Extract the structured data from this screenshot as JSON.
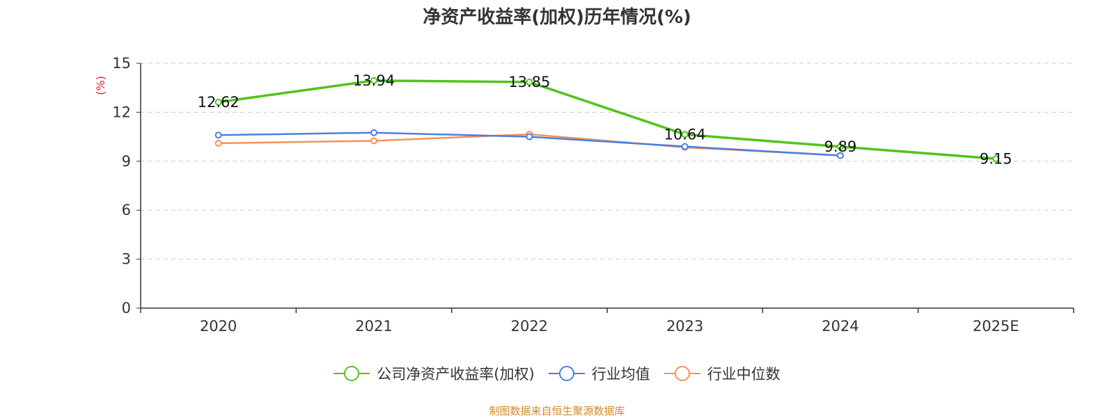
{
  "chart_data": {
    "type": "line",
    "title": "净资产收益率(加权)历年情况(%)",
    "ylabel": "(%)",
    "xlabel": "",
    "categories": [
      "2020",
      "2021",
      "2022",
      "2023",
      "2024",
      "2025E"
    ],
    "ylim": [
      0,
      15
    ],
    "yticks": [
      0,
      3,
      6,
      9,
      12,
      15
    ],
    "grid": true,
    "legend_position": "bottom",
    "series": [
      {
        "name": "公司净资产收益率(加权)",
        "color": "#52c41a",
        "values": [
          12.62,
          13.94,
          13.85,
          10.64,
          9.89,
          9.15
        ],
        "show_labels": true
      },
      {
        "name": "行业均值",
        "color": "#4a7fe0",
        "values": [
          10.6,
          10.75,
          10.5,
          9.9,
          9.35,
          null
        ],
        "show_labels": false
      },
      {
        "name": "行业中位数",
        "color": "#f5915a",
        "values": [
          10.1,
          10.25,
          10.65,
          9.85,
          9.35,
          null
        ],
        "show_labels": false
      }
    ],
    "source": "制图数据来自恒生聚源数据库"
  }
}
